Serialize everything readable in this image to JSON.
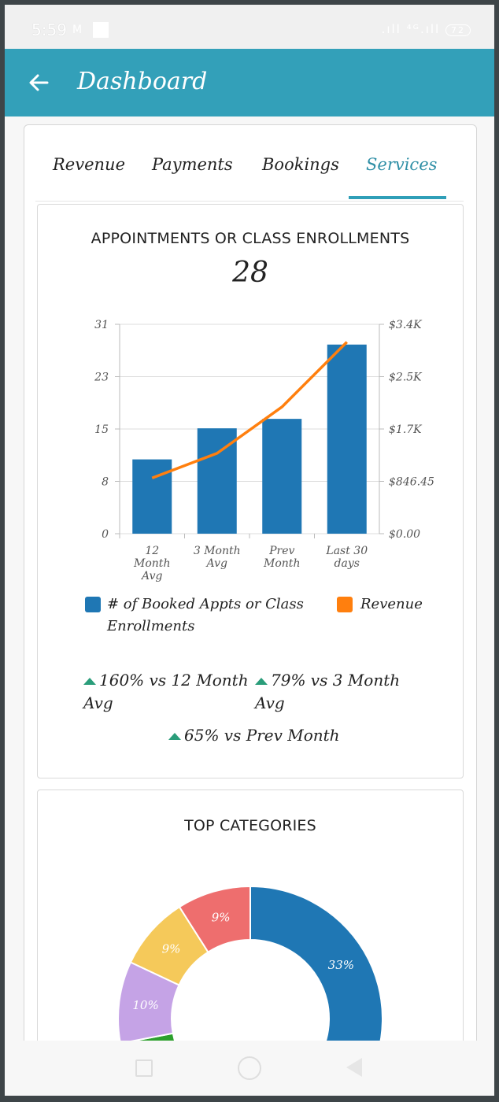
{
  "status_bar": {
    "time": "5:59",
    "notif_icon": "M",
    "signal_text": ".ıll ⁴ᴳ.ıll",
    "battery": "72"
  },
  "app_bar": {
    "title": "Dashboard",
    "back_icon": "arrow-left-icon"
  },
  "tabs": [
    {
      "label": "Revenue",
      "active": false
    },
    {
      "label": "Payments",
      "active": false
    },
    {
      "label": "Bookings",
      "active": false
    },
    {
      "label": "Services",
      "active": true
    }
  ],
  "appointments_card": {
    "title": "APPOINTMENTS OR CLASS ENROLLMENTS",
    "value": "28",
    "legend": [
      {
        "label": "# of Booked Appts or Class Enrollments",
        "color": "#1f77b4"
      },
      {
        "label": "Revenue",
        "color": "#ff7f0e"
      }
    ],
    "stats": [
      {
        "text": "160% vs 12 Month Avg"
      },
      {
        "text": "79% vs 3 Month Avg"
      },
      {
        "text": "65% vs Prev Month"
      }
    ]
  },
  "chart_data": [
    {
      "type": "bar",
      "categories": [
        "12 Month Avg",
        "3 Month Avg",
        "Prev Month",
        "Last 30 days"
      ],
      "series": [
        {
          "name": "# of Booked Appts or Class Enrollments",
          "type": "bar",
          "values": [
            11,
            15.6,
            17,
            28
          ],
          "color": "#1f77b4",
          "axis": "left"
        },
        {
          "name": "Revenue",
          "type": "line",
          "values": [
            900,
            1300,
            2050,
            3100
          ],
          "color": "#ff7f0e",
          "axis": "right"
        }
      ],
      "y_left": {
        "ticks": [
          "31",
          "23",
          "15",
          "8",
          "0"
        ],
        "ylim": [
          0,
          31
        ]
      },
      "y_right": {
        "ticks": [
          "$3.4K",
          "$2.5K",
          "$1.7K",
          "$846.45",
          "$0.00"
        ],
        "ylim": [
          0,
          3386
        ]
      },
      "grid": true
    },
    {
      "type": "pie",
      "title": "TOP CATEGORIES",
      "slices": [
        {
          "label": "33%",
          "value": 33,
          "color": "#1f77b4"
        },
        {
          "label": "",
          "value": 39,
          "color": "#2ca02c"
        },
        {
          "label": "",
          "value": 0,
          "color": "#5aa0d0"
        },
        {
          "label": "10%",
          "value": 10,
          "color": "#c5a3e6"
        },
        {
          "label": "9%",
          "value": 9,
          "color": "#f5c95a"
        },
        {
          "label": "9%",
          "value": 9,
          "color": "#ee6e6e"
        }
      ]
    }
  ],
  "categories_card": {
    "title": "TOP CATEGORIES"
  },
  "nav": {
    "recent": "square-icon",
    "home": "circle-icon",
    "back": "triangle-back-icon"
  }
}
